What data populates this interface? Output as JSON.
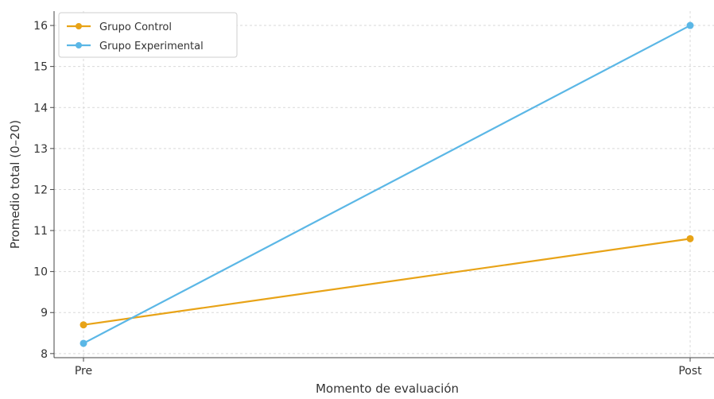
{
  "chart_data": {
    "type": "line",
    "categories": [
      "Pre",
      "Post"
    ],
    "series": [
      {
        "name": "Grupo Control",
        "values": [
          8.7,
          10.8
        ],
        "color": "#e8a317"
      },
      {
        "name": "Grupo Experimental",
        "values": [
          8.25,
          16.0
        ],
        "color": "#5bb7e6"
      }
    ],
    "xlabel": "Momento de evaluación",
    "ylabel": "Promedio total (0–20)",
    "ylim": [
      7.9,
      16.35
    ],
    "yticks": [
      8,
      9,
      10,
      11,
      12,
      13,
      14,
      15,
      16
    ],
    "grid": true,
    "legend_position": "top-left"
  }
}
